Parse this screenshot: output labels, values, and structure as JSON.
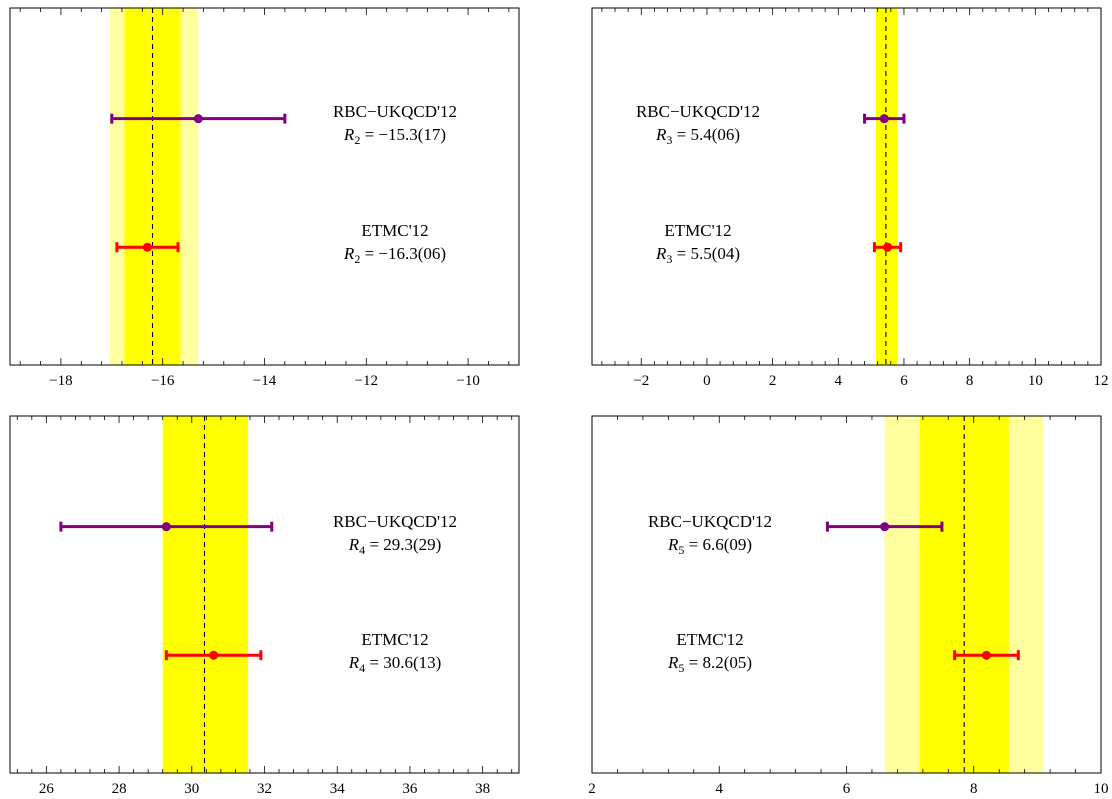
{
  "colors": {
    "inner_band": "#ffff00",
    "outer_band": "#ffffa0",
    "rbc_series": "#800080",
    "etmc_series": "#ff0000",
    "frame": "#000000"
  },
  "chart_data": [
    {
      "type": "errorbar",
      "xlim": [
        -19,
        -9
      ],
      "xticks": [
        -18,
        -16,
        -14,
        -12,
        -10
      ],
      "xtick_labels": [
        "−18",
        "−16",
        "−14",
        "−12",
        "−10"
      ],
      "central_line": -16.2,
      "inner_band": [
        -16.75,
        -15.65
      ],
      "outer_band": [
        -17.05,
        -15.3
      ],
      "series": [
        {
          "name": "RBC−UKQCD'12",
          "param": "R",
          "sub": "2",
          "value_text": " = −15.3(17)",
          "x": -15.3,
          "xerr_low": 1.7,
          "xerr_high": 1.7,
          "level": 0.69
        },
        {
          "name": "ETMC'12",
          "param": "R",
          "sub": "2",
          "value_text": " = −16.3(06)",
          "x": -16.3,
          "xerr_low": 0.6,
          "xerr_high": 0.6,
          "level": 0.33
        }
      ]
    },
    {
      "type": "errorbar",
      "xlim": [
        -3.5,
        12
      ],
      "xticks": [
        -2,
        0,
        2,
        4,
        6,
        8,
        10,
        12
      ],
      "xtick_labels": [
        "−2",
        "0",
        "2",
        "4",
        "6",
        "8",
        "10",
        "12"
      ],
      "central_line": 5.45,
      "inner_band": [
        5.15,
        5.8
      ],
      "outer_band": [
        5.15,
        5.8
      ],
      "series": [
        {
          "name": "RBC−UKQCD'12",
          "param": "R",
          "sub": "3",
          "value_text": " = 5.4(06)",
          "x": 5.4,
          "xerr_low": 0.6,
          "xerr_high": 0.6,
          "level": 0.69
        },
        {
          "name": "ETMC'12",
          "param": "R",
          "sub": "3",
          "value_text": " = 5.5(04)",
          "x": 5.5,
          "xerr_low": 0.4,
          "xerr_high": 0.4,
          "level": 0.33
        }
      ]
    },
    {
      "type": "errorbar",
      "xlim": [
        25,
        39
      ],
      "xticks": [
        26,
        28,
        30,
        32,
        34,
        36,
        38
      ],
      "xtick_labels": [
        "26",
        "28",
        "30",
        "32",
        "34",
        "36",
        "38"
      ],
      "central_line": 30.35,
      "inner_band": [
        29.2,
        31.55
      ],
      "outer_band": [
        29.2,
        31.55
      ],
      "series": [
        {
          "name": "RBC−UKQCD'12",
          "param": "R",
          "sub": "4",
          "value_text": " = 29.3(29)",
          "x": 29.3,
          "xerr_low": 2.9,
          "xerr_high": 2.9,
          "level": 0.69
        },
        {
          "name": "ETMC'12",
          "param": "R",
          "sub": "4",
          "value_text": " = 30.6(13)",
          "x": 30.6,
          "xerr_low": 1.3,
          "xerr_high": 1.3,
          "level": 0.33
        }
      ]
    },
    {
      "type": "errorbar",
      "xlim": [
        2,
        10
      ],
      "xticks": [
        2,
        4,
        6,
        8,
        10
      ],
      "xtick_labels": [
        "2",
        "4",
        "6",
        "8",
        "10"
      ],
      "central_line": 7.85,
      "inner_band": [
        7.15,
        8.55
      ],
      "outer_band": [
        6.6,
        9.1
      ],
      "series": [
        {
          "name": "RBC−UKQCD'12",
          "param": "R",
          "sub": "5",
          "value_text": " = 6.6(09)",
          "x": 6.6,
          "xerr_low": 0.9,
          "xerr_high": 0.9,
          "level": 0.69
        },
        {
          "name": "ETMC'12",
          "param": "R",
          "sub": "5",
          "value_text": " = 8.2(05)",
          "x": 8.2,
          "xerr_low": 0.5,
          "xerr_high": 0.5,
          "level": 0.33
        }
      ]
    }
  ]
}
